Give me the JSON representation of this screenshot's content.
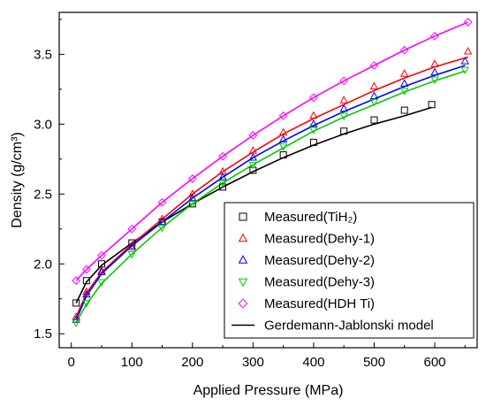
{
  "chart_data": {
    "type": "scatter",
    "xlabel": "Applied Pressure (MPa)",
    "ylabel": "Density (g/cm³)",
    "xlim": [
      -20,
      670
    ],
    "ylim": [
      1.4,
      3.8
    ],
    "xticks": [
      0,
      100,
      200,
      300,
      400,
      500,
      600
    ],
    "yticks": [
      1.5,
      2.0,
      2.5,
      3.0,
      3.5
    ],
    "xtick_labels": [
      "0",
      "100",
      "200",
      "300",
      "400",
      "500",
      "600"
    ],
    "ytick_labels": [
      "1.5",
      "2.0",
      "2.5",
      "3.0",
      "3.5"
    ],
    "legend_position": "bottom-right",
    "series": [
      {
        "name": "Measured(TiH₂)",
        "marker": "square",
        "color": "#000000",
        "x": [
          8,
          25,
          50,
          100,
          150,
          200,
          250,
          300,
          350,
          400,
          450,
          500,
          550,
          595
        ],
        "y": [
          1.72,
          1.88,
          2.0,
          2.15,
          2.3,
          2.43,
          2.55,
          2.67,
          2.78,
          2.87,
          2.95,
          3.03,
          3.1,
          3.14
        ],
        "fit": [
          [
            8,
            1.72
          ],
          [
            25,
            1.87
          ],
          [
            50,
            1.99
          ],
          [
            100,
            2.15
          ],
          [
            150,
            2.3
          ],
          [
            200,
            2.43
          ],
          [
            250,
            2.55
          ],
          [
            300,
            2.66
          ],
          [
            350,
            2.76
          ],
          [
            400,
            2.85
          ],
          [
            450,
            2.93
          ],
          [
            500,
            3.0
          ],
          [
            550,
            3.06
          ],
          [
            595,
            3.12
          ]
        ]
      },
      {
        "name": "Measured(Dehy-1)",
        "marker": "triangle-up",
        "color": "#ff0000",
        "x": [
          8,
          25,
          50,
          100,
          150,
          200,
          250,
          300,
          350,
          400,
          450,
          500,
          550,
          600,
          655
        ],
        "y": [
          1.62,
          1.8,
          1.95,
          2.13,
          2.32,
          2.5,
          2.66,
          2.81,
          2.94,
          3.06,
          3.17,
          3.27,
          3.36,
          3.43,
          3.52
        ],
        "fit": [
          [
            8,
            1.62
          ],
          [
            25,
            1.79
          ],
          [
            50,
            1.94
          ],
          [
            100,
            2.14
          ],
          [
            150,
            2.32
          ],
          [
            200,
            2.5
          ],
          [
            250,
            2.66
          ],
          [
            300,
            2.8
          ],
          [
            350,
            2.93
          ],
          [
            400,
            3.04
          ],
          [
            450,
            3.14
          ],
          [
            500,
            3.24
          ],
          [
            550,
            3.33
          ],
          [
            600,
            3.41
          ],
          [
            655,
            3.48
          ]
        ]
      },
      {
        "name": "Measured(Dehy-2)",
        "marker": "triangle-up",
        "color": "#0000ff",
        "x": [
          8,
          25,
          50,
          100,
          150,
          200,
          250,
          300,
          350,
          400,
          450,
          500,
          550,
          600,
          650
        ],
        "y": [
          1.6,
          1.78,
          1.94,
          2.12,
          2.3,
          2.47,
          2.62,
          2.76,
          2.89,
          3.0,
          3.11,
          3.2,
          3.29,
          3.37,
          3.45
        ],
        "fit": [
          [
            8,
            1.6
          ],
          [
            25,
            1.77
          ],
          [
            50,
            1.93
          ],
          [
            100,
            2.13
          ],
          [
            150,
            2.3
          ],
          [
            200,
            2.47
          ],
          [
            250,
            2.62
          ],
          [
            300,
            2.76
          ],
          [
            350,
            2.88
          ],
          [
            400,
            2.99
          ],
          [
            450,
            3.09
          ],
          [
            500,
            3.18
          ],
          [
            550,
            3.27
          ],
          [
            600,
            3.35
          ],
          [
            650,
            3.42
          ]
        ]
      },
      {
        "name": "Measured(Dehy-3)",
        "marker": "triangle-down",
        "color": "#00cc00",
        "x": [
          8,
          25,
          50,
          100,
          150,
          200,
          250,
          300,
          350,
          400,
          450,
          500,
          550,
          600,
          650
        ],
        "y": [
          1.58,
          1.72,
          1.87,
          2.07,
          2.26,
          2.43,
          2.58,
          2.71,
          2.84,
          2.96,
          3.06,
          3.16,
          3.24,
          3.32,
          3.39
        ],
        "fit": [
          [
            8,
            1.58
          ],
          [
            25,
            1.71
          ],
          [
            50,
            1.86
          ],
          [
            100,
            2.07
          ],
          [
            150,
            2.26
          ],
          [
            200,
            2.43
          ],
          [
            250,
            2.58
          ],
          [
            300,
            2.71
          ],
          [
            350,
            2.83
          ],
          [
            400,
            2.95
          ],
          [
            450,
            3.05
          ],
          [
            500,
            3.14
          ],
          [
            550,
            3.23
          ],
          [
            600,
            3.31
          ],
          [
            650,
            3.38
          ]
        ]
      },
      {
        "name": "Measured(HDH Ti)",
        "marker": "diamond",
        "color": "#ff00ff",
        "x": [
          8,
          25,
          50,
          100,
          150,
          200,
          250,
          300,
          350,
          400,
          450,
          500,
          550,
          600,
          655
        ],
        "y": [
          1.88,
          1.96,
          2.06,
          2.25,
          2.44,
          2.61,
          2.77,
          2.92,
          3.06,
          3.19,
          3.31,
          3.42,
          3.53,
          3.63,
          3.73
        ],
        "fit": [
          [
            8,
            1.88
          ],
          [
            25,
            1.96
          ],
          [
            50,
            2.06
          ],
          [
            100,
            2.25
          ],
          [
            150,
            2.44
          ],
          [
            200,
            2.61
          ],
          [
            250,
            2.77
          ],
          [
            300,
            2.92
          ],
          [
            350,
            3.06
          ],
          [
            400,
            3.19
          ],
          [
            450,
            3.31
          ],
          [
            500,
            3.42
          ],
          [
            550,
            3.53
          ],
          [
            600,
            3.63
          ],
          [
            655,
            3.73
          ]
        ]
      }
    ],
    "model_label": "Gerdemann-Jablonski model",
    "model_color": "#000000"
  }
}
